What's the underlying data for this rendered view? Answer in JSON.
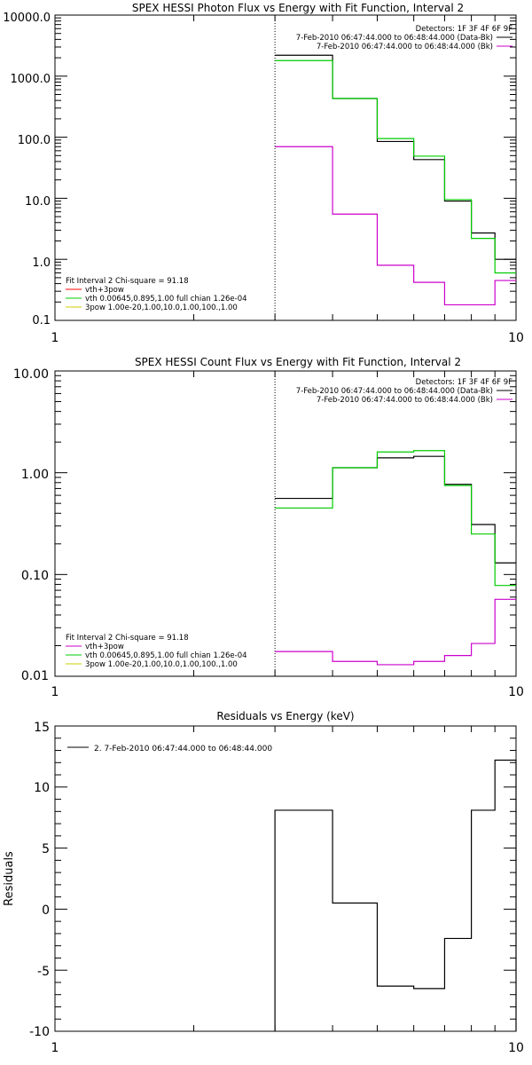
{
  "charts": [
    {
      "id": "photon",
      "title": "SPEX HESSI Photon Flux vs Energy with Fit Function, Interval 2",
      "yscale": "log",
      "ylim": [
        0.1,
        10000
      ],
      "xlim": [
        1,
        10
      ],
      "ytick_labels": [
        "0.1",
        "1.0",
        "10.0",
        "100.0",
        "1000.0",
        "10000.0"
      ],
      "xtick_labels": [
        "1",
        "10"
      ],
      "header_lines": [
        "Detectors: 1F 3F 4F 6F 9F",
        "7-Feb-2010 06:47:44.000 to 06:48:44.000 (Data-Bk)",
        "7-Feb-2010 06:47:44.000 to 06:48:44.000 (Bk)"
      ],
      "fit_text": [
        "Fit Interval 2   Chi-square = 91.18",
        "vth+3pow",
        "vth 0.00645,0.895,1.00  full chian 1.26e-04",
        "3pow 1.00e-20,1.00,10.0,1.00,100.,1.00"
      ],
      "dotted_x": 3.0
    },
    {
      "id": "count",
      "title": "SPEX HESSI Count Flux vs Energy with Fit Function, Interval 2",
      "yscale": "log",
      "ylim": [
        0.01,
        10
      ],
      "xlim": [
        1,
        10
      ],
      "ytick_labels": [
        "0.01",
        "0.10",
        "1.00",
        "10.00"
      ],
      "xtick_labels": [
        "1",
        "10"
      ],
      "header_lines": [
        "Detectors: 1F 3F 4F 6F 9F",
        "7-Feb-2010 06:47:44.000 to 06:48:44.000 (Data-Bk)",
        "7-Feb-2010 06:47:44.000 to 06:48:44.000 (Bk)"
      ],
      "fit_text": [
        "Fit Interval 2   Chi-square = 91.18",
        "vth+3pow",
        "vth 0.00645,0.895,1.00  full chian 1.26e-04",
        "3pow 1.00e-20,1.00,10.0,1.00,100.,1.00"
      ],
      "dotted_x": 3.0
    },
    {
      "id": "resid",
      "title": "Residuals vs Energy (keV)",
      "yscale": "linear",
      "ylim": [
        -10,
        15
      ],
      "xlim": [
        1,
        10
      ],
      "ylabel": "Residuals",
      "ytick_labels": [
        "-10",
        "-5",
        "0",
        "5",
        "10",
        "15"
      ],
      "xtick_labels": [
        "1",
        "10"
      ],
      "legend": "2.  7-Feb-2010 06:47:44.000 to 06:48:44.000"
    }
  ],
  "colors": {
    "data": "#000000",
    "background": "#cc00cc",
    "fit_total": "#00cc00",
    "vth_plus_3pow": "#ff0000",
    "vth": "#00cc00",
    "three_pow": "#cccc00"
  },
  "chart_data": [
    {
      "type": "line",
      "title": "SPEX HESSI Photon Flux vs Energy with Fit Function, Interval 2",
      "xscale": "log",
      "yscale": "log",
      "xlim": [
        1,
        10
      ],
      "ylim": [
        0.1,
        10000
      ],
      "bin_edges": [
        3.0,
        4.0,
        5.0,
        6.0,
        7.0,
        8.0,
        9.0,
        10.0
      ],
      "series": [
        {
          "name": "7-Feb-2010 06:47:44.000 to 06:48:44.000 (Data-Bk)",
          "values": [
            2200,
            430,
            85,
            43,
            9,
            2.7,
            1.0
          ]
        },
        {
          "name": "7-Feb-2010 06:47:44.000 to 06:48:44.000 (Bk)",
          "values": [
            70,
            5.5,
            0.8,
            0.42,
            0.18,
            0.18,
            0.45
          ]
        },
        {
          "name": "vth+3pow",
          "values": [
            1800,
            430,
            95,
            49,
            9.5,
            2.2,
            0.6
          ]
        }
      ]
    },
    {
      "type": "line",
      "title": "SPEX HESSI Count Flux vs Energy with Fit Function, Interval 2",
      "xscale": "log",
      "yscale": "log",
      "xlim": [
        1,
        10
      ],
      "ylim": [
        0.01,
        10
      ],
      "bin_edges": [
        3.0,
        4.0,
        5.0,
        6.0,
        7.0,
        8.0,
        9.0,
        10.0
      ],
      "series": [
        {
          "name": "7-Feb-2010 06:47:44.000 to 06:48:44.000 (Data-Bk)",
          "values": [
            0.56,
            1.12,
            1.4,
            1.45,
            0.77,
            0.31,
            0.13
          ]
        },
        {
          "name": "7-Feb-2010 06:47:44.000 to 06:48:44.000 (Bk)",
          "values": [
            0.0175,
            0.014,
            0.013,
            0.014,
            0.016,
            0.021,
            0.057
          ]
        },
        {
          "name": "vth+3pow",
          "values": [
            0.45,
            1.12,
            1.6,
            1.65,
            0.75,
            0.25,
            0.078
          ]
        }
      ]
    },
    {
      "type": "line",
      "title": "Residuals vs Energy (keV)",
      "xscale": "log",
      "yscale": "linear",
      "xlim": [
        1,
        10
      ],
      "ylim": [
        -10,
        15
      ],
      "ylabel": "Residuals",
      "bin_edges": [
        3.0,
        4.0,
        5.0,
        6.0,
        7.0,
        8.0,
        9.0,
        10.0
      ],
      "series": [
        {
          "name": "2.  7-Feb-2010 06:47:44.000 to 06:48:44.000",
          "values": [
            8.1,
            0.5,
            -6.3,
            -6.5,
            -2.4,
            8.1,
            12.2
          ]
        }
      ]
    }
  ]
}
